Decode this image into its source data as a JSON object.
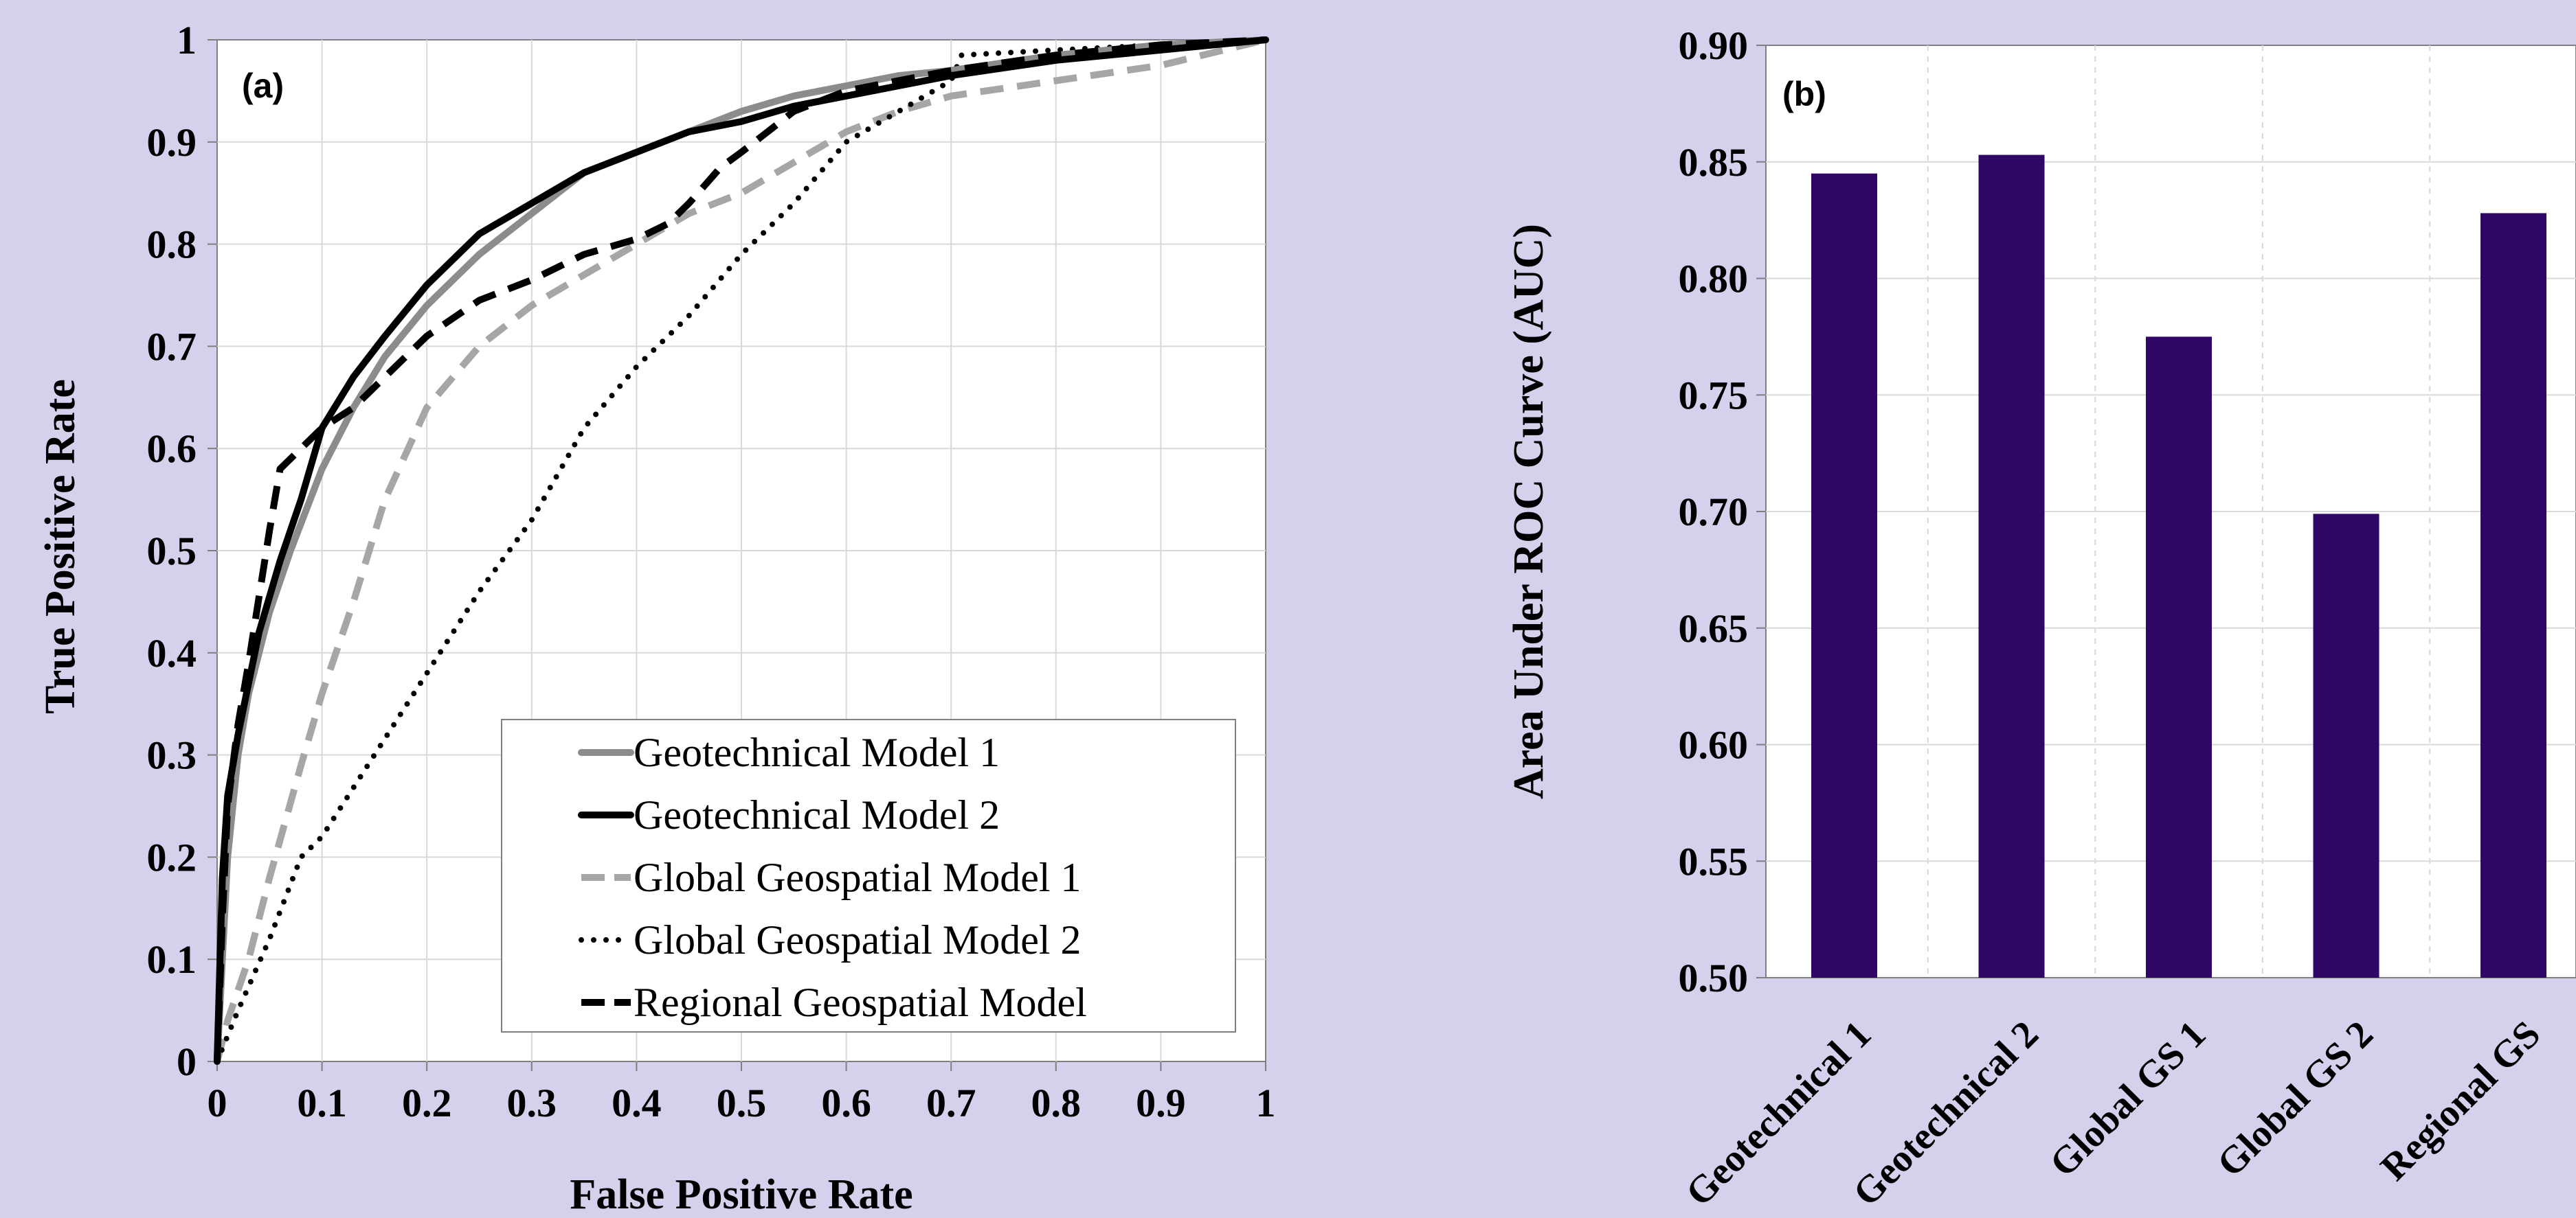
{
  "colors": {
    "background": "#d5d0ec",
    "bar": "#2e0767",
    "geotech1": "#8c8c8c",
    "geotech2": "#000000",
    "global1": "#a6a6a6",
    "global2": "#000000",
    "regional": "#000000"
  },
  "chart_data": [
    {
      "type": "line",
      "panel_label": "(a)",
      "xlabel": "False Positive Rate",
      "ylabel": "True Positive Rate",
      "xlim": [
        0,
        1
      ],
      "ylim": [
        0,
        1
      ],
      "xticks": [
        "0",
        "0.1",
        "0.2",
        "0.3",
        "0.4",
        "0.5",
        "0.6",
        "0.7",
        "0.8",
        "0.9",
        "1"
      ],
      "yticks": [
        "0",
        "0.1",
        "0.2",
        "0.3",
        "0.4",
        "0.5",
        "0.6",
        "0.7",
        "0.8",
        "0.9",
        "1"
      ],
      "grid": true,
      "legend_position": "bottom-right",
      "series": [
        {
          "name": "Geotechnical Model 1",
          "style": "solid-gray",
          "x": [
            0,
            0.01,
            0.02,
            0.03,
            0.05,
            0.07,
            0.1,
            0.13,
            0.16,
            0.2,
            0.25,
            0.3,
            0.35,
            0.4,
            0.45,
            0.5,
            0.55,
            0.6,
            0.65,
            0.7,
            0.8,
            0.9,
            1.0
          ],
          "y": [
            0,
            0.2,
            0.3,
            0.36,
            0.44,
            0.5,
            0.58,
            0.64,
            0.69,
            0.74,
            0.79,
            0.83,
            0.87,
            0.89,
            0.91,
            0.93,
            0.945,
            0.955,
            0.965,
            0.97,
            0.985,
            0.995,
            1.0
          ]
        },
        {
          "name": "Geotechnical Model 2",
          "style": "solid-black",
          "x": [
            0,
            0.005,
            0.01,
            0.02,
            0.04,
            0.06,
            0.08,
            0.1,
            0.13,
            0.16,
            0.2,
            0.25,
            0.3,
            0.35,
            0.4,
            0.45,
            0.5,
            0.55,
            0.6,
            0.65,
            0.7,
            0.8,
            0.9,
            1.0
          ],
          "y": [
            0,
            0.18,
            0.26,
            0.32,
            0.42,
            0.49,
            0.55,
            0.62,
            0.67,
            0.71,
            0.76,
            0.81,
            0.84,
            0.87,
            0.89,
            0.91,
            0.92,
            0.935,
            0.945,
            0.955,
            0.965,
            0.98,
            0.99,
            1.0
          ]
        },
        {
          "name": "Global Geospatial Model 1",
          "style": "dash-gray",
          "x": [
            0,
            0.01,
            0.03,
            0.05,
            0.08,
            0.1,
            0.13,
            0.16,
            0.2,
            0.25,
            0.3,
            0.35,
            0.4,
            0.45,
            0.5,
            0.55,
            0.6,
            0.65,
            0.7,
            0.8,
            0.9,
            1.0
          ],
          "y": [
            0,
            0.04,
            0.1,
            0.18,
            0.29,
            0.36,
            0.45,
            0.55,
            0.64,
            0.7,
            0.74,
            0.77,
            0.8,
            0.83,
            0.85,
            0.88,
            0.91,
            0.93,
            0.945,
            0.96,
            0.975,
            1.0
          ]
        },
        {
          "name": "Global Geospatial Model 2",
          "style": "dot-black",
          "x": [
            0,
            0.02,
            0.05,
            0.08,
            0.1,
            0.15,
            0.2,
            0.25,
            0.3,
            0.35,
            0.4,
            0.45,
            0.5,
            0.55,
            0.6,
            0.65,
            0.7,
            0.71,
            0.8,
            0.9,
            1.0
          ],
          "y": [
            0,
            0.05,
            0.12,
            0.2,
            0.22,
            0.3,
            0.38,
            0.46,
            0.53,
            0.62,
            0.68,
            0.73,
            0.79,
            0.84,
            0.9,
            0.93,
            0.96,
            0.985,
            0.99,
            0.995,
            1.0
          ]
        },
        {
          "name": "Regional Geospatial Model",
          "style": "dash-black",
          "x": [
            0,
            0.005,
            0.01,
            0.02,
            0.03,
            0.05,
            0.06,
            0.08,
            0.1,
            0.13,
            0.16,
            0.2,
            0.25,
            0.3,
            0.35,
            0.4,
            0.43,
            0.45,
            0.48,
            0.5,
            0.55,
            0.6,
            0.7,
            0.8,
            0.9,
            1.0
          ],
          "y": [
            0,
            0.14,
            0.25,
            0.33,
            0.39,
            0.52,
            0.58,
            0.6,
            0.62,
            0.64,
            0.67,
            0.71,
            0.745,
            0.765,
            0.79,
            0.805,
            0.82,
            0.84,
            0.875,
            0.89,
            0.93,
            0.95,
            0.97,
            0.985,
            0.995,
            1.0
          ]
        }
      ]
    },
    {
      "type": "bar",
      "panel_label": "(b)",
      "ylabel": "Area Under ROC Curve (AUC)",
      "xlabel": "",
      "categories": [
        "Geotechnical 1",
        "Geotechnical 2",
        "Global GS 1",
        "Global GS 2",
        "Regional GS"
      ],
      "values": [
        0.845,
        0.853,
        0.775,
        0.699,
        0.828
      ],
      "ylim": [
        0.5,
        0.9
      ],
      "yticks": [
        "0.50",
        "0.55",
        "0.60",
        "0.65",
        "0.70",
        "0.75",
        "0.80",
        "0.85",
        "0.90"
      ],
      "grid": true
    }
  ]
}
